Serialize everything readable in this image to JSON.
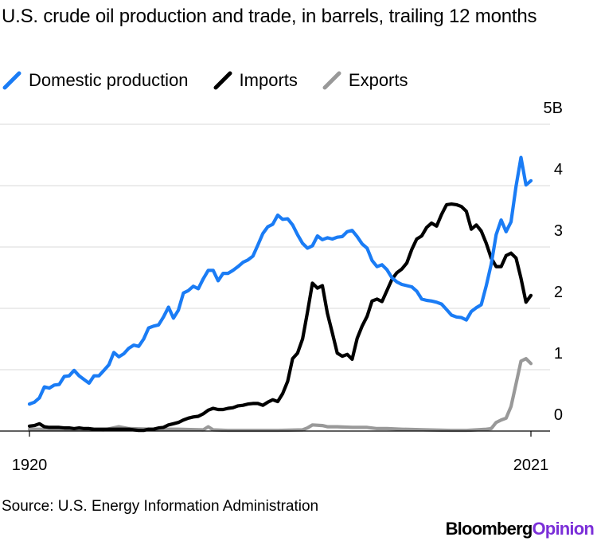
{
  "header": {
    "title": "U.S. crude oil production and trade, in barrels, trailing 12 months"
  },
  "legend": [
    {
      "label": "Domestic production",
      "color": "#1a7cf5"
    },
    {
      "label": "Imports",
      "color": "#000000"
    },
    {
      "label": "Exports",
      "color": "#999999"
    }
  ],
  "footer": {
    "source": "Source: U.S. Energy Information Administration",
    "brand_main": "Bloomberg",
    "brand_accent": "Opinion"
  },
  "colors": {
    "production": "#1a7cf5",
    "imports": "#000000",
    "exports": "#999999",
    "grid": "#d9d9d9",
    "brand_accent": "#7b2fd8"
  },
  "chart_data": {
    "type": "line",
    "title": "U.S. crude oil production and trade, in barrels, trailing 12 months",
    "y_unit": "billion barrels",
    "ylim": [
      0,
      5
    ],
    "xlim": [
      1920,
      2021
    ],
    "y_ticks": [
      {
        "value": 0,
        "label": "0"
      },
      {
        "value": 1,
        "label": "1"
      },
      {
        "value": 2,
        "label": "2"
      },
      {
        "value": 3,
        "label": "3"
      },
      {
        "value": 4,
        "label": "4"
      },
      {
        "value": 5,
        "label": "5B"
      }
    ],
    "x_ticks": [
      {
        "value": 1920,
        "label": "1920"
      },
      {
        "value": 2021,
        "label": "2021"
      }
    ],
    "grid": true,
    "legend_position": "top-left",
    "series": [
      {
        "name": "Domestic production",
        "color": "#1a7cf5",
        "points": [
          [
            1920,
            0.44
          ],
          [
            1921,
            0.47
          ],
          [
            1922,
            0.54
          ],
          [
            1923,
            0.72
          ],
          [
            1924,
            0.7
          ],
          [
            1925,
            0.75
          ],
          [
            1926,
            0.76
          ],
          [
            1927,
            0.89
          ],
          [
            1928,
            0.9
          ],
          [
            1929,
            0.99
          ],
          [
            1930,
            0.9
          ],
          [
            1931,
            0.84
          ],
          [
            1932,
            0.78
          ],
          [
            1933,
            0.9
          ],
          [
            1934,
            0.9
          ],
          [
            1935,
            0.99
          ],
          [
            1936,
            1.08
          ],
          [
            1937,
            1.28
          ],
          [
            1938,
            1.21
          ],
          [
            1939,
            1.26
          ],
          [
            1940,
            1.35
          ],
          [
            1941,
            1.4
          ],
          [
            1942,
            1.38
          ],
          [
            1943,
            1.5
          ],
          [
            1944,
            1.68
          ],
          [
            1945,
            1.71
          ],
          [
            1946,
            1.73
          ],
          [
            1947,
            1.86
          ],
          [
            1948,
            2.02
          ],
          [
            1949,
            1.84
          ],
          [
            1950,
            1.97
          ],
          [
            1951,
            2.25
          ],
          [
            1952,
            2.29
          ],
          [
            1953,
            2.36
          ],
          [
            1954,
            2.32
          ],
          [
            1955,
            2.48
          ],
          [
            1956,
            2.62
          ],
          [
            1957,
            2.62
          ],
          [
            1958,
            2.45
          ],
          [
            1959,
            2.57
          ],
          [
            1960,
            2.57
          ],
          [
            1961,
            2.62
          ],
          [
            1962,
            2.68
          ],
          [
            1963,
            2.75
          ],
          [
            1964,
            2.79
          ],
          [
            1965,
            2.85
          ],
          [
            1966,
            3.03
          ],
          [
            1967,
            3.22
          ],
          [
            1968,
            3.33
          ],
          [
            1969,
            3.37
          ],
          [
            1970,
            3.52
          ],
          [
            1971,
            3.45
          ],
          [
            1972,
            3.46
          ],
          [
            1973,
            3.36
          ],
          [
            1974,
            3.2
          ],
          [
            1975,
            3.06
          ],
          [
            1976,
            2.98
          ],
          [
            1977,
            3.02
          ],
          [
            1978,
            3.18
          ],
          [
            1979,
            3.12
          ],
          [
            1980,
            3.15
          ],
          [
            1981,
            3.13
          ],
          [
            1982,
            3.16
          ],
          [
            1983,
            3.17
          ],
          [
            1984,
            3.25
          ],
          [
            1985,
            3.27
          ],
          [
            1986,
            3.17
          ],
          [
            1987,
            3.05
          ],
          [
            1988,
            2.98
          ],
          [
            1989,
            2.78
          ],
          [
            1990,
            2.68
          ],
          [
            1991,
            2.71
          ],
          [
            1992,
            2.63
          ],
          [
            1993,
            2.5
          ],
          [
            1994,
            2.43
          ],
          [
            1995,
            2.39
          ],
          [
            1996,
            2.37
          ],
          [
            1997,
            2.35
          ],
          [
            1998,
            2.28
          ],
          [
            1999,
            2.15
          ],
          [
            2000,
            2.13
          ],
          [
            2001,
            2.12
          ],
          [
            2002,
            2.1
          ],
          [
            2003,
            2.07
          ],
          [
            2004,
            1.98
          ],
          [
            2005,
            1.89
          ],
          [
            2006,
            1.86
          ],
          [
            2007,
            1.85
          ],
          [
            2008,
            1.81
          ],
          [
            2009,
            1.95
          ],
          [
            2010,
            2.01
          ],
          [
            2011,
            2.06
          ],
          [
            2012,
            2.37
          ],
          [
            2013,
            2.72
          ],
          [
            2014,
            3.2
          ],
          [
            2015,
            3.44
          ],
          [
            2016,
            3.25
          ],
          [
            2017,
            3.41
          ],
          [
            2018,
            3.99
          ],
          [
            2019,
            4.46
          ],
          [
            2020,
            4.01
          ],
          [
            2021,
            4.08
          ]
        ]
      },
      {
        "name": "Imports",
        "color": "#000000",
        "points": [
          [
            1920,
            0.08
          ],
          [
            1921,
            0.09
          ],
          [
            1922,
            0.12
          ],
          [
            1923,
            0.07
          ],
          [
            1924,
            0.06
          ],
          [
            1925,
            0.06
          ],
          [
            1926,
            0.06
          ],
          [
            1927,
            0.05
          ],
          [
            1928,
            0.05
          ],
          [
            1929,
            0.04
          ],
          [
            1930,
            0.05
          ],
          [
            1931,
            0.04
          ],
          [
            1932,
            0.04
          ],
          [
            1933,
            0.03
          ],
          [
            1934,
            0.03
          ],
          [
            1935,
            0.03
          ],
          [
            1936,
            0.03
          ],
          [
            1937,
            0.03
          ],
          [
            1938,
            0.03
          ],
          [
            1939,
            0.03
          ],
          [
            1940,
            0.03
          ],
          [
            1941,
            0.02
          ],
          [
            1942,
            0.01
          ],
          [
            1943,
            0.01
          ],
          [
            1944,
            0.03
          ],
          [
            1945,
            0.03
          ],
          [
            1946,
            0.05
          ],
          [
            1947,
            0.06
          ],
          [
            1948,
            0.1
          ],
          [
            1949,
            0.12
          ],
          [
            1950,
            0.14
          ],
          [
            1951,
            0.18
          ],
          [
            1952,
            0.21
          ],
          [
            1953,
            0.23
          ],
          [
            1954,
            0.24
          ],
          [
            1955,
            0.28
          ],
          [
            1956,
            0.34
          ],
          [
            1957,
            0.37
          ],
          [
            1958,
            0.35
          ],
          [
            1959,
            0.35
          ],
          [
            1960,
            0.37
          ],
          [
            1961,
            0.38
          ],
          [
            1962,
            0.41
          ],
          [
            1963,
            0.42
          ],
          [
            1964,
            0.44
          ],
          [
            1965,
            0.45
          ],
          [
            1966,
            0.45
          ],
          [
            1967,
            0.42
          ],
          [
            1968,
            0.47
          ],
          [
            1969,
            0.51
          ],
          [
            1970,
            0.48
          ],
          [
            1971,
            0.61
          ],
          [
            1972,
            0.81
          ],
          [
            1973,
            1.18
          ],
          [
            1974,
            1.27
          ],
          [
            1975,
            1.5
          ],
          [
            1976,
            1.94
          ],
          [
            1977,
            2.41
          ],
          [
            1978,
            2.33
          ],
          [
            1979,
            2.37
          ],
          [
            1980,
            1.92
          ],
          [
            1981,
            1.6
          ],
          [
            1982,
            1.27
          ],
          [
            1983,
            1.22
          ],
          [
            1984,
            1.25
          ],
          [
            1985,
            1.17
          ],
          [
            1986,
            1.51
          ],
          [
            1987,
            1.71
          ],
          [
            1988,
            1.87
          ],
          [
            1989,
            2.12
          ],
          [
            1990,
            2.15
          ],
          [
            1991,
            2.11
          ],
          [
            1992,
            2.29
          ],
          [
            1993,
            2.47
          ],
          [
            1994,
            2.58
          ],
          [
            1995,
            2.64
          ],
          [
            1996,
            2.74
          ],
          [
            1997,
            2.96
          ],
          [
            1998,
            3.13
          ],
          [
            1999,
            3.18
          ],
          [
            2000,
            3.32
          ],
          [
            2001,
            3.39
          ],
          [
            2002,
            3.34
          ],
          [
            2003,
            3.53
          ],
          [
            2004,
            3.69
          ],
          [
            2005,
            3.7
          ],
          [
            2006,
            3.69
          ],
          [
            2007,
            3.66
          ],
          [
            2008,
            3.58
          ],
          [
            2009,
            3.29
          ],
          [
            2010,
            3.36
          ],
          [
            2011,
            3.26
          ],
          [
            2012,
            3.06
          ],
          [
            2013,
            2.82
          ],
          [
            2014,
            2.68
          ],
          [
            2015,
            2.68
          ],
          [
            2016,
            2.86
          ],
          [
            2017,
            2.9
          ],
          [
            2018,
            2.82
          ],
          [
            2019,
            2.49
          ],
          [
            2020,
            2.1
          ],
          [
            2021,
            2.21
          ]
        ]
      },
      {
        "name": "Exports",
        "color": "#999999",
        "points": [
          [
            1920,
            0.03
          ],
          [
            1925,
            0.03
          ],
          [
            1929,
            0.03
          ],
          [
            1935,
            0.02
          ],
          [
            1938,
            0.07
          ],
          [
            1940,
            0.04
          ],
          [
            1945,
            0.03
          ],
          [
            1950,
            0.03
          ],
          [
            1955,
            0.02
          ],
          [
            1956,
            0.07
          ],
          [
            1957,
            0.02
          ],
          [
            1960,
            0.01
          ],
          [
            1965,
            0.01
          ],
          [
            1970,
            0.01
          ],
          [
            1975,
            0.02
          ],
          [
            1976,
            0.05
          ],
          [
            1977,
            0.1
          ],
          [
            1979,
            0.09
          ],
          [
            1980,
            0.07
          ],
          [
            1982,
            0.07
          ],
          [
            1985,
            0.06
          ],
          [
            1988,
            0.06
          ],
          [
            1990,
            0.04
          ],
          [
            1992,
            0.04
          ],
          [
            1995,
            0.03
          ],
          [
            2000,
            0.02
          ],
          [
            2005,
            0.01
          ],
          [
            2008,
            0.01
          ],
          [
            2010,
            0.02
          ],
          [
            2012,
            0.03
          ],
          [
            2013,
            0.04
          ],
          [
            2014,
            0.14
          ],
          [
            2015,
            0.18
          ],
          [
            2016,
            0.21
          ],
          [
            2017,
            0.4
          ],
          [
            2018,
            0.77
          ],
          [
            2019,
            1.14
          ],
          [
            2020,
            1.18
          ],
          [
            2021,
            1.1
          ]
        ]
      }
    ]
  }
}
